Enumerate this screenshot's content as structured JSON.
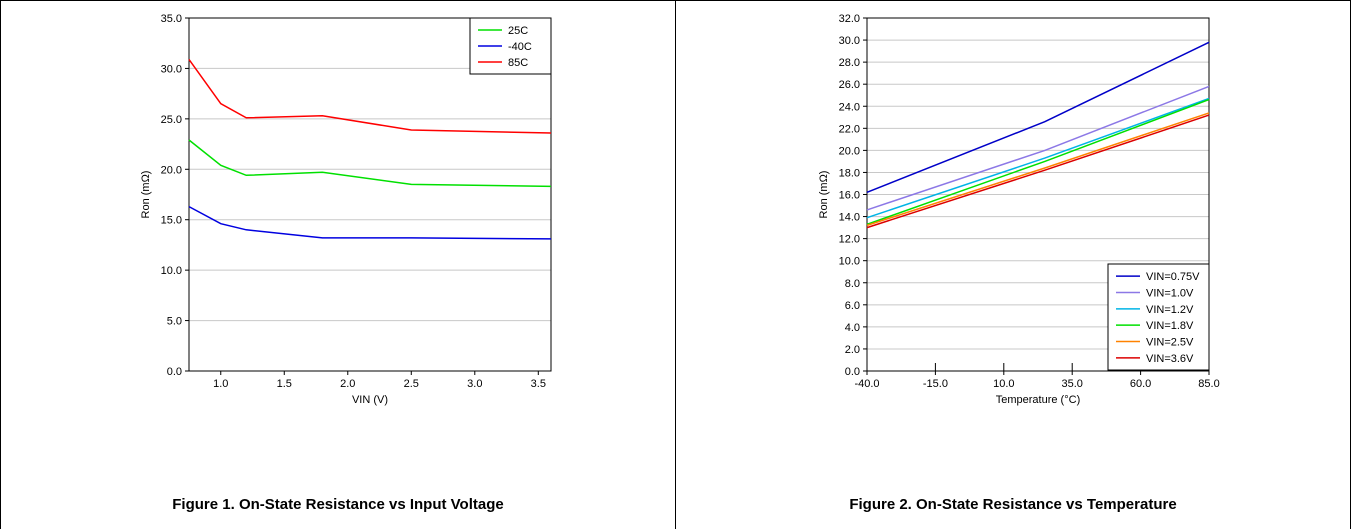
{
  "figures": [
    {
      "caption": "Figure 1. On-State Resistance vs Input Voltage",
      "chart_data": {
        "type": "line",
        "xlabel": "VIN (V)",
        "ylabel": "Ron (mΩ)",
        "xlim": [
          0.75,
          3.6
        ],
        "ylim": [
          0,
          35
        ],
        "xticks": [
          "1.0",
          "1.5",
          "2.0",
          "2.5",
          "3.0",
          "3.5"
        ],
        "yticks": [
          "0.0",
          "5.0",
          "10.0",
          "15.0",
          "20.0",
          "25.0",
          "30.0",
          "35.0"
        ],
        "grid": "horizontal",
        "legend": "top-right",
        "series": [
          {
            "name": "25C",
            "color": "#00e000",
            "x": [
              0.75,
              1.0,
              1.2,
              1.8,
              2.5,
              3.6
            ],
            "y": [
              22.9,
              20.4,
              19.4,
              19.7,
              18.5,
              18.3
            ]
          },
          {
            "name": "-40C",
            "color": "#0000e0",
            "x": [
              0.75,
              1.0,
              1.2,
              1.8,
              2.5,
              3.6
            ],
            "y": [
              16.3,
              14.6,
              14.0,
              13.2,
              13.2,
              13.1
            ]
          },
          {
            "name": "85C",
            "color": "#ff0000",
            "x": [
              0.75,
              1.0,
              1.2,
              1.8,
              2.5,
              3.6
            ],
            "y": [
              30.9,
              26.5,
              25.1,
              25.3,
              23.9,
              23.6
            ]
          }
        ]
      }
    },
    {
      "caption": "Figure 2. On-State Resistance vs Temperature",
      "chart_data": {
        "type": "line",
        "xlabel": "Temperature (°C)",
        "ylabel": "Ron (mΩ)",
        "xlim": [
          -40,
          85
        ],
        "ylim": [
          0,
          32
        ],
        "xticks": [
          "-40.0",
          "-15.0",
          "10.0",
          "35.0",
          "60.0",
          "85.0"
        ],
        "yticks": [
          "0.0",
          "2.0",
          "4.0",
          "6.0",
          "8.0",
          "10.0",
          "12.0",
          "14.0",
          "16.0",
          "18.0",
          "20.0",
          "22.0",
          "24.0",
          "26.0",
          "28.0",
          "30.0",
          "32.0"
        ],
        "grid": "horizontal",
        "legend": "bottom-right",
        "series": [
          {
            "name": "VIN=0.75V",
            "color": "#0000c8",
            "x": [
              -40,
              25,
              85
            ],
            "y": [
              16.2,
              22.6,
              29.8
            ]
          },
          {
            "name": "VIN=1.0V",
            "color": "#8c78e6",
            "x": [
              -40,
              25,
              85
            ],
            "y": [
              14.6,
              20.0,
              25.8
            ]
          },
          {
            "name": "VIN=1.2V",
            "color": "#00b4e6",
            "x": [
              -40,
              25,
              85
            ],
            "y": [
              13.9,
              19.3,
              24.7
            ]
          },
          {
            "name": "VIN=1.8V",
            "color": "#00e000",
            "x": [
              -40,
              25,
              85
            ],
            "y": [
              13.3,
              19.0,
              24.6
            ]
          },
          {
            "name": "VIN=2.5V",
            "color": "#ff8200",
            "x": [
              -40,
              25,
              85
            ],
            "y": [
              13.2,
              18.4,
              23.4
            ]
          },
          {
            "name": "VIN=3.6V",
            "color": "#dc0000",
            "x": [
              -40,
              25,
              85
            ],
            "y": [
              13.0,
              18.2,
              23.2
            ]
          }
        ]
      }
    }
  ]
}
